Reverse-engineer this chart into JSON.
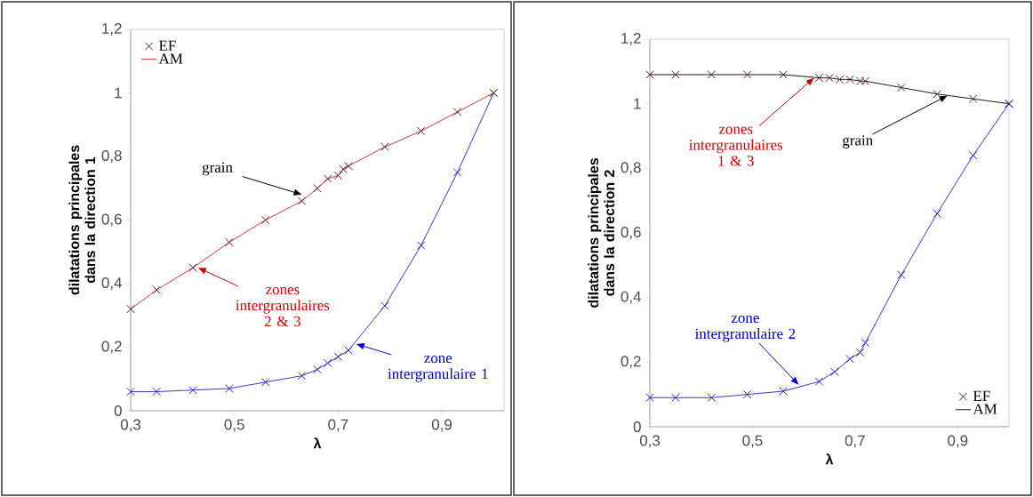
{
  "chart_data": [
    {
      "type": "line",
      "xlabel": "λ",
      "ylabel": "dilatations principales dans la direction 1",
      "xlim": [
        0.3,
        1.02
      ],
      "ylim": [
        0,
        1.2
      ],
      "xticks": [
        {
          "value": 0.3,
          "label": "0,3"
        },
        {
          "value": 0.5,
          "label": "0,5"
        },
        {
          "value": 0.7,
          "label": "0,7"
        },
        {
          "value": 0.9,
          "label": "0,9"
        }
      ],
      "yticks": [
        0,
        {
          "value": 0.2,
          "label": "0,2"
        },
        {
          "value": 0.4,
          "label": "0,4"
        },
        {
          "value": 0.6,
          "label": "0,6"
        },
        {
          "value": 0.8,
          "label": "0,8"
        },
        1,
        {
          "value": 1.2,
          "label": "1,2"
        }
      ],
      "legend": "top left",
      "grid": false,
      "series": [
        {
          "name": "EF",
          "type": "scatter",
          "marker": "cross",
          "color": "#5a1a1a",
          "x": [
            0.3,
            0.35,
            0.42,
            0.49,
            0.56,
            0.63,
            0.66,
            0.68,
            0.7,
            0.71,
            0.72,
            0.79,
            0.86,
            0.93,
            1.0
          ],
          "values": [
            0.32,
            0.38,
            0.45,
            0.53,
            0.6,
            0.66,
            0.7,
            0.73,
            0.74,
            0.76,
            0.77,
            0.83,
            0.88,
            0.94,
            1.0
          ]
        },
        {
          "name": "AM",
          "marker": "none",
          "line_style": "solid",
          "color": "#cc2222",
          "x": [
            0.3,
            0.35,
            0.42,
            0.49,
            0.56,
            0.63,
            0.66,
            0.68,
            0.7,
            0.71,
            0.72,
            0.79,
            0.86,
            0.93,
            1.0
          ],
          "values": [
            0.32,
            0.38,
            0.45,
            0.53,
            0.6,
            0.66,
            0.7,
            0.73,
            0.74,
            0.76,
            0.77,
            0.83,
            0.88,
            0.94,
            1.0
          ]
        },
        {
          "type": "scatter",
          "marker": "cross",
          "color": "#2222bb",
          "x": [
            0.3,
            0.35,
            0.42,
            0.49,
            0.56,
            0.63,
            0.66,
            0.68,
            0.7,
            0.72,
            0.79,
            0.86,
            0.93,
            1.0
          ],
          "values": [
            0.06,
            0.06,
            0.065,
            0.07,
            0.09,
            0.11,
            0.13,
            0.15,
            0.17,
            0.19,
            0.33,
            0.52,
            0.75,
            1.0
          ]
        },
        {
          "marker": "none",
          "line_style": "solid",
          "color": "#2222bb",
          "x": [
            0.3,
            0.35,
            0.42,
            0.49,
            0.56,
            0.63,
            0.66,
            0.68,
            0.7,
            0.72,
            0.79,
            0.86,
            0.93,
            1.0
          ],
          "values": [
            0.06,
            0.06,
            0.065,
            0.07,
            0.09,
            0.11,
            0.13,
            0.15,
            0.17,
            0.19,
            0.33,
            0.52,
            0.75,
            1.0
          ]
        }
      ],
      "annotations": [
        {
          "text": "grain",
          "x": 0.63,
          "y": 0.68
        },
        {
          "text": "zones intergranulaires 2 & 3",
          "x": 0.43,
          "y": 0.45
        },
        {
          "text": "zone intergranulaire 1",
          "x": 0.735,
          "y": 0.21
        }
      ]
    },
    {
      "type": "line",
      "xlabel": "λ",
      "ylabel": "dilatations principales dans la direction 2",
      "xlim": [
        0.3,
        1.0
      ],
      "ylim": [
        0,
        1.2
      ],
      "xticks": [
        {
          "value": 0.3,
          "label": "0,3"
        },
        {
          "value": 0.5,
          "label": "0,5"
        },
        {
          "value": 0.7,
          "label": "0,7"
        },
        {
          "value": 0.9,
          "label": "0,9"
        }
      ],
      "yticks": [
        0,
        {
          "value": 0.2,
          "label": "0,2"
        },
        {
          "value": 0.4,
          "label": "0,4"
        },
        {
          "value": 0.6,
          "label": "0,6"
        },
        {
          "value": 0.8,
          "label": "0,8"
        },
        1,
        {
          "value": 1.2,
          "label": "1,2"
        }
      ],
      "legend": "bottom right",
      "grid": false,
      "series": [
        {
          "name": "EF",
          "type": "scatter",
          "marker": "cross",
          "color": "#5a1a1a",
          "x": [
            0.3,
            0.35,
            0.42,
            0.49,
            0.56,
            0.63,
            0.65,
            0.67,
            0.69,
            0.71,
            0.72,
            0.79,
            0.86,
            0.93,
            1.0
          ],
          "values": [
            1.09,
            1.09,
            1.09,
            1.09,
            1.09,
            1.08,
            1.08,
            1.075,
            1.075,
            1.07,
            1.07,
            1.05,
            1.03,
            1.015,
            1.0
          ]
        },
        {
          "name": "AM",
          "marker": "none",
          "line_style": "solid",
          "color": "#000000",
          "x": [
            0.3,
            0.35,
            0.42,
            0.49,
            0.56,
            0.63,
            0.65,
            0.67,
            0.69,
            0.71,
            0.72,
            0.79,
            0.86,
            0.93,
            1.0
          ],
          "values": [
            1.09,
            1.09,
            1.09,
            1.09,
            1.09,
            1.08,
            1.08,
            1.075,
            1.075,
            1.07,
            1.07,
            1.05,
            1.03,
            1.015,
            1.0
          ]
        },
        {
          "type": "scatter",
          "marker": "cross",
          "color": "#2222bb",
          "x": [
            0.3,
            0.35,
            0.42,
            0.49,
            0.56,
            0.63,
            0.66,
            0.69,
            0.71,
            0.72,
            0.79,
            0.86,
            0.93,
            1.0
          ],
          "values": [
            0.09,
            0.09,
            0.09,
            0.1,
            0.11,
            0.14,
            0.17,
            0.21,
            0.23,
            0.26,
            0.47,
            0.66,
            0.84,
            1.0
          ]
        },
        {
          "marker": "none",
          "line_style": "solid",
          "color": "#2222bb",
          "x": [
            0.3,
            0.35,
            0.42,
            0.49,
            0.56,
            0.63,
            0.66,
            0.69,
            0.71,
            0.72,
            0.79,
            0.86,
            0.93,
            1.0
          ],
          "values": [
            0.09,
            0.09,
            0.09,
            0.1,
            0.11,
            0.14,
            0.17,
            0.21,
            0.23,
            0.26,
            0.47,
            0.66,
            0.84,
            1.0
          ]
        }
      ],
      "annotations": [
        {
          "text": "zones intergranulaires 1 & 3",
          "x": 0.62,
          "y": 1.08
        },
        {
          "text": "grain",
          "x": 0.88,
          "y": 1.025
        },
        {
          "text": "zone intergranulaire 2",
          "x": 0.59,
          "y": 0.13
        }
      ]
    }
  ]
}
